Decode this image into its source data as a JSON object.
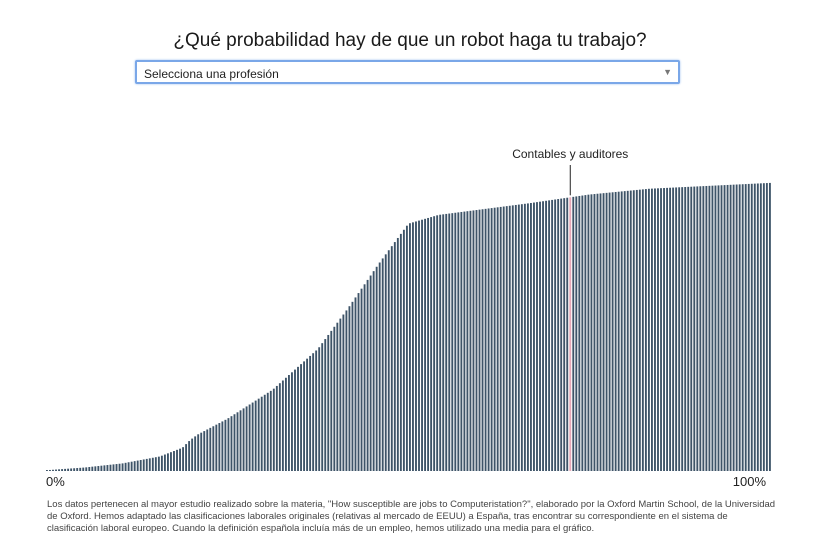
{
  "page": {
    "title": "¿Qué probabilidad hay de que un robot haga tu trabajo?",
    "select": {
      "value": "Selecciona una profesión"
    },
    "footnote": "Los datos pertenecen al mayor estudio realizado sobre la materia, \"How susceptible are jobs to Computeristation?\", elaborado por la Oxford Martin School, de la Universidad de Oxford. Hemos adaptado las clasificaciones laborales originales (relativas al mercado de EEUU) a España, tras encontrar su correspondiente en el sistema de clasificación laboral europeo. Cuando la definición española incluía más de un empleo, hemos utilizado una media para el gráfico."
  },
  "chart_data": {
    "type": "bar",
    "title": "",
    "xlabel": "",
    "ylabel": "",
    "x_tick_labels": [
      "0%",
      "100%"
    ],
    "ylim": [
      0,
      1
    ],
    "grid": false,
    "bar_count": 240,
    "bar_color": "#3e5468",
    "highlight": {
      "label": "Contables y auditores",
      "value": 0.94,
      "color": "#e8a9b8"
    },
    "curve_points": [
      [
        0,
        0.0028
      ],
      [
        25,
        0.012
      ],
      [
        50,
        0.026
      ],
      [
        75,
        0.05
      ],
      [
        90,
        0.08
      ],
      [
        95,
        0.106
      ],
      [
        100,
        0.125
      ],
      [
        120,
        0.18
      ],
      [
        150,
        0.28
      ],
      [
        180,
        0.42
      ],
      [
        200,
        0.56
      ],
      [
        220,
        0.71
      ],
      [
        240,
        0.85
      ],
      [
        260,
        0.88
      ],
      [
        290,
        0.9
      ],
      [
        320,
        0.92
      ],
      [
        360,
        0.95
      ],
      [
        400,
        0.97
      ],
      [
        440,
        0.98
      ],
      [
        480,
        0.99
      ]
    ]
  }
}
